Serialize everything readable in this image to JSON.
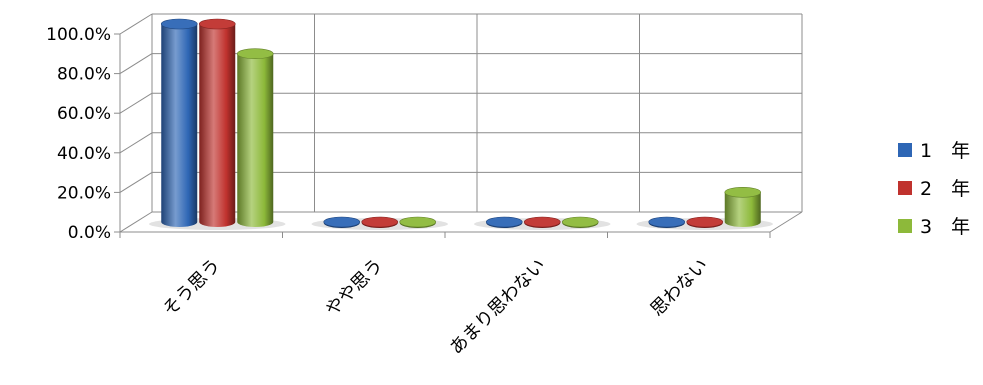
{
  "chart_data": {
    "type": "bar",
    "categories": [
      "そう思う",
      "やや思う",
      "あまり思わない",
      "思わない"
    ],
    "series": [
      {
        "name": "1　年",
        "values": [
          100.0,
          0.0,
          0.0,
          0.0
        ]
      },
      {
        "name": "2　年",
        "values": [
          100.0,
          0.0,
          0.0,
          0.0
        ]
      },
      {
        "name": "3　年",
        "values": [
          85.0,
          0.0,
          0.0,
          15.0
        ]
      }
    ],
    "y_ticks": [
      "0.0%",
      "20.0%",
      "40.0%",
      "60.0%",
      "80.0%",
      "100.0%"
    ],
    "ylim": [
      0,
      100
    ],
    "grid": true,
    "legend_position": "right",
    "colors": {
      "1　年": "#2e66b5",
      "2　年": "#c0322e",
      "3　年": "#8db93a"
    }
  }
}
